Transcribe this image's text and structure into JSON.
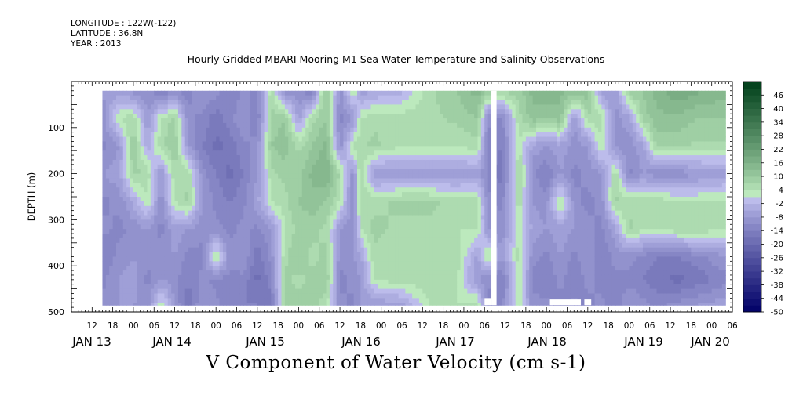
{
  "header": {
    "longitude": "LONGITUDE : 122W(-122)",
    "latitude": "LATITUDE : 36.8N",
    "year": "YEAR : 2013"
  },
  "chart_data": {
    "type": "heatmap",
    "title": "Hourly Gridded MBARI Mooring M1 Sea Water Temperature and Salinity Observations",
    "variable_title": "V Component of Water Velocity (cm s-1)",
    "ylabel": "DEPTH (m)",
    "ylim": [
      500,
      0
    ],
    "ytick_values": [
      100,
      200,
      300,
      400,
      500
    ],
    "ytick_labels": [
      "100",
      "200",
      "300",
      "400",
      "500"
    ],
    "x_hour_labels": [
      "12",
      "18",
      "00",
      "06",
      "12",
      "18",
      "00",
      "06",
      "12",
      "18",
      "00",
      "06",
      "12",
      "18",
      "00",
      "06",
      "12",
      "18",
      "00",
      "06",
      "12",
      "18",
      "00",
      "06",
      "12",
      "18",
      "00",
      "06",
      "12",
      "18",
      "00",
      "06"
    ],
    "x_day_labels": [
      "JAN 13",
      "JAN 14",
      "JAN 15",
      "JAN 16",
      "JAN 17",
      "JAN 18",
      "JAN 19",
      "JAN 20"
    ],
    "colorbar_labels": [
      "46",
      "40",
      "34",
      "28",
      "22",
      "16",
      "10",
      "4",
      "-2",
      "-8",
      "-14",
      "-20",
      "-26",
      "-32",
      "-38",
      "-44",
      "-50"
    ],
    "colorbar_range": [
      -50,
      52
    ],
    "colorbar_step": 3,
    "colors": {
      "negative_strong": "#000066",
      "negative_light": "#c6c6f2",
      "positive_light": "#c6f2c6",
      "positive_strong": "#003f1a"
    },
    "time_axis_start": "2013-01-13 06:00",
    "data_start_hour": 9,
    "data_end_hour": 190,
    "depth_range": [
      20,
      485
    ],
    "profile_columns": [
      {
        "hour": 9,
        "profile": [
          -8,
          -10,
          -12,
          -8,
          -12,
          -10,
          -14,
          -12,
          -10
        ]
      },
      {
        "hour": 14,
        "profile": [
          -6,
          4,
          -8,
          -6,
          -10,
          -12,
          -10,
          -8,
          -8
        ]
      },
      {
        "hour": 18,
        "profile": [
          -8,
          6,
          10,
          8,
          -4,
          -10,
          -8,
          -6,
          -8
        ]
      },
      {
        "hour": 22,
        "profile": [
          -10,
          -8,
          -4,
          6,
          4,
          -8,
          -10,
          -12,
          -10
        ]
      },
      {
        "hour": 26,
        "profile": [
          -12,
          4,
          6,
          -8,
          -10,
          -12,
          -10,
          -8,
          4
        ]
      },
      {
        "hour": 30,
        "profile": [
          -10,
          8,
          10,
          6,
          4,
          -6,
          -8,
          -10,
          -8
        ]
      },
      {
        "hour": 34,
        "profile": [
          -12,
          -10,
          -8,
          6,
          8,
          -8,
          -12,
          -14,
          -16
        ]
      },
      {
        "hour": 38,
        "profile": [
          -8,
          -12,
          -14,
          -10,
          -8,
          -10,
          -12,
          -10,
          -8
        ]
      },
      {
        "hour": 42,
        "profile": [
          -10,
          -16,
          -18,
          -14,
          -12,
          -10,
          6,
          -12,
          -10
        ]
      },
      {
        "hour": 46,
        "profile": [
          -14,
          -12,
          -16,
          -18,
          -14,
          -12,
          -10,
          -12,
          -14
        ]
      },
      {
        "hour": 50,
        "profile": [
          -10,
          -8,
          -12,
          -14,
          -12,
          -10,
          -8,
          -12,
          -14
        ]
      },
      {
        "hour": 54,
        "profile": [
          -12,
          -14,
          -10,
          -8,
          -6,
          -12,
          -16,
          -18,
          -14
        ]
      },
      {
        "hour": 58,
        "profile": [
          6,
          8,
          10,
          6,
          4,
          -8,
          -10,
          -12,
          -16
        ]
      },
      {
        "hour": 62,
        "profile": [
          -8,
          10,
          12,
          8,
          6,
          4,
          6,
          8,
          10
        ]
      },
      {
        "hour": 66,
        "profile": [
          -10,
          -6,
          6,
          8,
          10,
          8,
          10,
          6,
          8
        ]
      },
      {
        "hour": 70,
        "profile": [
          -12,
          6,
          10,
          14,
          12,
          8,
          6,
          8,
          10
        ]
      },
      {
        "hour": 74,
        "profile": [
          12,
          10,
          14,
          16,
          10,
          6,
          8,
          10,
          4
        ]
      },
      {
        "hour": 78,
        "profile": [
          -10,
          -12,
          -10,
          6,
          4,
          -8,
          -10,
          -12,
          -10
        ]
      },
      {
        "hour": 82,
        "profile": [
          4,
          -8,
          6,
          -10,
          -12,
          -10,
          -8,
          -10,
          -12
        ]
      },
      {
        "hour": 84,
        "profile": [
          -6,
          4,
          6,
          8,
          6,
          4,
          -6,
          -8,
          -8
        ]
      },
      {
        "hour": 88,
        "profile": [
          -4,
          6,
          8,
          -8,
          6,
          8,
          6,
          4,
          -8
        ]
      },
      {
        "hour": 96,
        "profile": [
          -2,
          6,
          4,
          -8,
          8,
          6,
          4,
          6,
          -6
        ]
      },
      {
        "hour": 104,
        "profile": [
          6,
          6,
          4,
          -8,
          8,
          6,
          4,
          6,
          4
        ]
      },
      {
        "hour": 112,
        "profile": [
          10,
          8,
          4,
          -8,
          6,
          4,
          6,
          4,
          4
        ]
      },
      {
        "hour": 118,
        "profile": [
          14,
          10,
          6,
          -6,
          6,
          4,
          -6,
          -8,
          6
        ]
      },
      {
        "hour": 121,
        "profile": [
          8,
          -10,
          -12,
          -12,
          -10,
          -8,
          6,
          -10,
          -12
        ]
      },
      {
        "hour": 125,
        "profile": [
          6,
          -12,
          -14,
          -16,
          -12,
          -10,
          -8,
          -14,
          -12
        ]
      },
      {
        "hour": 130,
        "profile": [
          8,
          6,
          4,
          8,
          6,
          4,
          6,
          4,
          4
        ]
      },
      {
        "hour": 134,
        "profile": [
          14,
          12,
          -6,
          -10,
          -8,
          -6,
          -10,
          -12,
          -10
        ]
      },
      {
        "hour": 138,
        "profile": [
          16,
          10,
          -8,
          -14,
          -10,
          -8,
          -12,
          -14,
          -10
        ]
      },
      {
        "hour": 142,
        "profile": [
          14,
          12,
          -6,
          -8,
          6,
          -6,
          -8,
          -10,
          -12
        ]
      },
      {
        "hour": 146,
        "profile": [
          10,
          -8,
          -10,
          -12,
          -10,
          -8,
          -12,
          -14,
          -10
        ]
      },
      {
        "hour": 150,
        "profile": [
          12,
          6,
          -8,
          -10,
          -12,
          -10,
          -8,
          -10,
          -12
        ]
      },
      {
        "hour": 154,
        "profile": [
          -6,
          6,
          4,
          -8,
          -10,
          -12,
          -14,
          -12,
          -10
        ]
      },
      {
        "hour": 158,
        "profile": [
          -8,
          -10,
          -8,
          6,
          8,
          -6,
          -10,
          -12,
          -14
        ]
      },
      {
        "hour": 162,
        "profile": [
          8,
          -6,
          -10,
          -12,
          6,
          8,
          -10,
          -12,
          -8
        ]
      },
      {
        "hour": 166,
        "profile": [
          10,
          8,
          -6,
          -8,
          6,
          4,
          -12,
          -14,
          -10
        ]
      },
      {
        "hour": 170,
        "profile": [
          14,
          12,
          8,
          -10,
          6,
          4,
          -14,
          -16,
          -12
        ]
      },
      {
        "hour": 176,
        "profile": [
          18,
          12,
          8,
          -10,
          4,
          6,
          -14,
          -18,
          -10
        ]
      },
      {
        "hour": 182,
        "profile": [
          16,
          10,
          6,
          -8,
          4,
          6,
          -12,
          -16,
          -8
        ]
      },
      {
        "hour": 190,
        "profile": [
          14,
          10,
          6,
          -6,
          4,
          4,
          -8,
          -12,
          -6
        ]
      }
    ],
    "profile_depths": [
      25,
      80,
      140,
      200,
      260,
      320,
      380,
      430,
      485
    ],
    "missing_data": [
      {
        "hour_start": 122.0,
        "hour_end": 123.5,
        "depth_start": 20,
        "depth_end": 485
      },
      {
        "hour_start": 120.0,
        "hour_end": 122.0,
        "depth_start": 470,
        "depth_end": 485
      },
      {
        "hour_start": 139.0,
        "hour_end": 148.0,
        "depth_start": 473,
        "depth_end": 485
      },
      {
        "hour_start": 149.0,
        "hour_end": 151.0,
        "depth_start": 473,
        "depth_end": 485
      }
    ]
  }
}
